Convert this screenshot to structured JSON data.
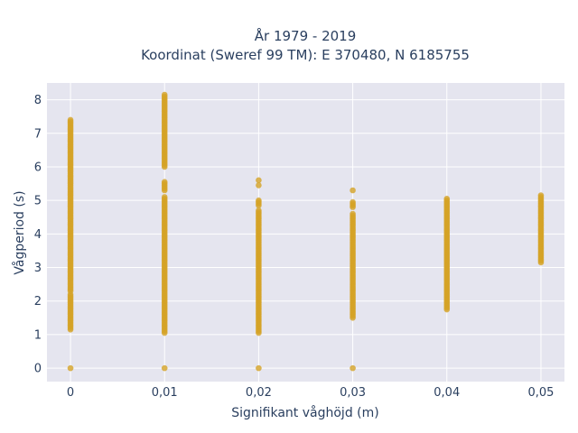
{
  "chart_data": {
    "type": "scatter",
    "title": "År 1979 - 2019",
    "subtitle": "Koordinat (Sweref 99 TM): E 370480, N 6185755",
    "xlabel": "Signifikant våghöjd (m)",
    "ylabel": "Vågperiod (s)",
    "xlim": [
      -0.0025,
      0.0525
    ],
    "ylim": [
      -0.4,
      8.5
    ],
    "grid": true,
    "legend": "none",
    "x_ticks": [
      {
        "value": 0,
        "label": "0"
      },
      {
        "value": 0.01,
        "label": "0,01"
      },
      {
        "value": 0.02,
        "label": "0,02"
      },
      {
        "value": 0.03,
        "label": "0,03"
      },
      {
        "value": 0.04,
        "label": "0,04"
      },
      {
        "value": 0.05,
        "label": "0,05"
      }
    ],
    "y_ticks": [
      0,
      1,
      2,
      3,
      4,
      5,
      6,
      7,
      8
    ],
    "colors": {
      "marker": "#d4a326",
      "plot_bg": "#e5e5ef",
      "grid": "#ffffff",
      "text": "#2a3f5f"
    },
    "series": [
      {
        "x_groups": [
          {
            "x": 0,
            "outliers": [
              0.0
            ],
            "ranges": [
              [
                1.15,
                2.2
              ],
              [
                2.3,
                7.4
              ]
            ]
          },
          {
            "x": 0.01,
            "outliers": [
              0.0
            ],
            "ranges": [
              [
                1.05,
                5.1
              ],
              [
                5.3,
                5.55
              ],
              [
                6.0,
                8.15
              ]
            ]
          },
          {
            "x": 0.02,
            "outliers": [
              0.0,
              5.45,
              5.6
            ],
            "ranges": [
              [
                1.05,
                4.7
              ],
              [
                4.85,
                5.0
              ]
            ]
          },
          {
            "x": 0.03,
            "outliers": [
              0.0,
              5.3
            ],
            "ranges": [
              [
                1.5,
                4.6
              ],
              [
                4.8,
                4.95
              ]
            ]
          },
          {
            "x": 0.04,
            "outliers": [],
            "ranges": [
              [
                1.75,
                5.05
              ]
            ]
          },
          {
            "x": 0.05,
            "outliers": [],
            "ranges": [
              [
                3.15,
                5.15
              ]
            ]
          }
        ]
      }
    ]
  }
}
